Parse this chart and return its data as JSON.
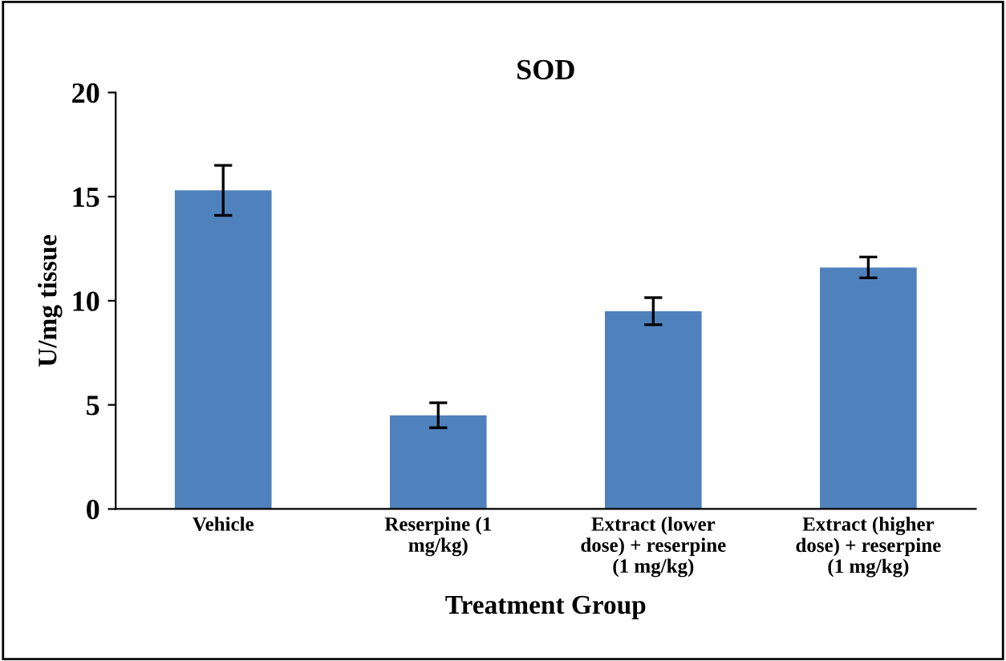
{
  "chart_data": {
    "type": "bar",
    "title": "SOD",
    "xlabel": "Treatment Group",
    "ylabel": "U/mg tissue",
    "categories": [
      "Vehicle",
      "Reserpine (1\nmg/kg)",
      "Extract (lower\ndose) + reserpine\n(1 mg/kg)",
      "Extract (higher\ndose) + reserpine\n(1 mg/kg)"
    ],
    "values": [
      15.3,
      4.5,
      9.5,
      11.6
    ],
    "errors": [
      1.2,
      0.6,
      0.65,
      0.5
    ],
    "color": "#4f81bd",
    "ylim": [
      0,
      20
    ],
    "yticks": [
      0,
      5,
      10,
      15,
      20
    ],
    "grid": false,
    "legend": false
  }
}
